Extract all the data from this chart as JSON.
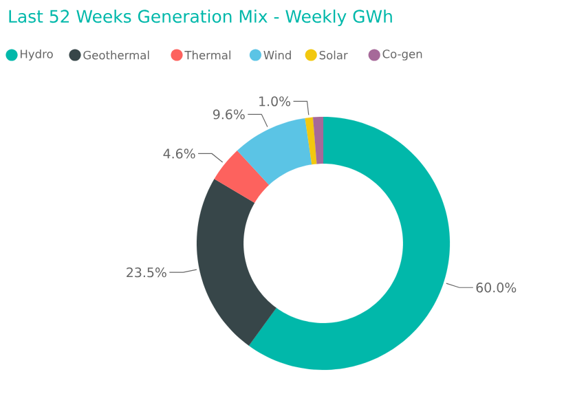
{
  "chart_data": {
    "type": "donut",
    "title": "Last 52 Weeks Generation Mix - Weekly GWh",
    "categories": [
      "Hydro",
      "Geothermal",
      "Thermal",
      "Wind",
      "Solar",
      "Co-gen"
    ],
    "values": [
      60.0,
      23.5,
      4.6,
      9.6,
      1.0,
      1.3
    ],
    "colors": [
      "#01b8aa",
      "#374649",
      "#fd625e",
      "#5bc4e5",
      "#f2c80f",
      "#a66999"
    ],
    "value_labels": [
      "60.0%",
      "23.5%",
      "4.6%",
      "9.6%",
      "1.0%",
      null
    ],
    "legend": "top left"
  }
}
